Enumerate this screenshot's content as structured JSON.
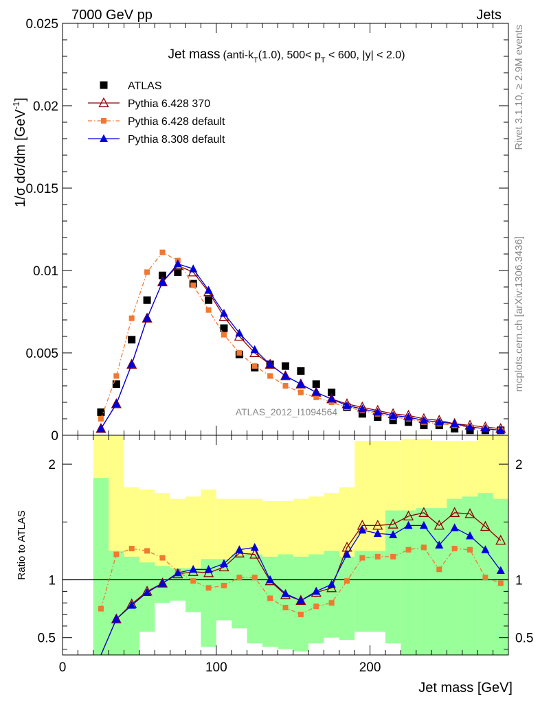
{
  "header": {
    "left": "7000 GeV pp",
    "right": "Jets",
    "side_top": "Rivet 3.1.10, ≥ 2.9M events",
    "side_bottom": "mcplots.cern.ch [arXiv:1306.3436]",
    "watermark": "ATLAS_2012_I1094564"
  },
  "chart_data": [
    {
      "type": "scatter",
      "title_main": "Jet mass",
      "title_sub": "(anti-k",
      "title_sub_T": "T",
      "title_sub2": "(1.0), 500< p",
      "title_sub3": " < 600, |y| < 2.0)",
      "ylabel": "1/σ dσ/dm [GeV",
      "ylabel_sup": "-1",
      "ylabel_end": "]",
      "xlim": [
        0,
        290
      ],
      "ylim": [
        0,
        0.025
      ],
      "yticks": [
        0,
        0.005,
        0.01,
        0.015,
        0.02,
        0.025
      ],
      "ytick_labels": [
        "0",
        "0.005",
        "0.01",
        "0.015",
        "0.02",
        "0.025"
      ],
      "x": [
        25,
        35,
        45,
        55,
        65,
        75,
        85,
        95,
        105,
        115,
        125,
        135,
        145,
        155,
        165,
        175,
        185,
        195,
        205,
        215,
        225,
        235,
        245,
        255,
        265,
        275,
        285
      ],
      "legend": [
        "ATLAS",
        "Pythia 6.428 370",
        "Pythia 6.428 default",
        "Pythia 8.308 default"
      ],
      "series": [
        {
          "name": "ATLAS",
          "color": "#000000",
          "marker": "square",
          "values": [
            0.0014,
            0.0031,
            0.0058,
            0.0082,
            0.0097,
            0.0099,
            0.0092,
            0.0082,
            0.0065,
            0.0049,
            0.0041,
            0.0043,
            0.0042,
            0.0039,
            0.0031,
            0.0026,
            0.0017,
            0.0013,
            0.0011,
            0.0009,
            0.0008,
            0.0006,
            0.0006,
            0.0004,
            0.0003,
            0.0003,
            0.0003
          ]
        },
        {
          "name": "Pythia 6.428 370",
          "color": "#8b0000",
          "marker": "triangle-open",
          "values": [
            0.0004,
            0.0019,
            0.0043,
            0.0071,
            0.0093,
            0.0103,
            0.0099,
            0.0087,
            0.0072,
            0.006,
            0.005,
            0.0043,
            0.0036,
            0.0031,
            0.0026,
            0.0022,
            0.0019,
            0.0017,
            0.0015,
            0.0013,
            0.0012,
            0.001,
            0.0009,
            0.0007,
            0.0006,
            0.0005,
            0.0004
          ]
        },
        {
          "name": "Pythia 6.428 default",
          "color": "#f07830",
          "marker": "square-small",
          "dash": true,
          "values": [
            0.001,
            0.0036,
            0.0071,
            0.0099,
            0.0111,
            0.0106,
            0.0091,
            0.0076,
            0.0061,
            0.005,
            0.0042,
            0.0036,
            0.003,
            0.0026,
            0.0023,
            0.002,
            0.0017,
            0.0015,
            0.0013,
            0.0011,
            0.001,
            0.0008,
            0.0007,
            0.0006,
            0.0005,
            0.0004,
            0.0003
          ]
        },
        {
          "name": "Pythia 8.308 default",
          "color": "#0000dd",
          "marker": "triangle",
          "values": [
            0.0004,
            0.0019,
            0.0043,
            0.0071,
            0.0093,
            0.0104,
            0.0101,
            0.0088,
            0.0074,
            0.0062,
            0.0052,
            0.0043,
            0.0036,
            0.0031,
            0.0026,
            0.0022,
            0.0018,
            0.0016,
            0.0014,
            0.0012,
            0.0011,
            0.0009,
            0.0008,
            0.0007,
            0.0005,
            0.0004,
            0.0003
          ]
        }
      ]
    },
    {
      "type": "line",
      "ylabel": "Ratio to ATLAS",
      "xlabel": "Jet mass [GeV]",
      "xlim": [
        0,
        290
      ],
      "ylim": [
        0.35,
        2.25
      ],
      "xticks": [
        0,
        100,
        200
      ],
      "xtick_labels": [
        "0",
        "100",
        "200"
      ],
      "yticks": [
        0.5,
        1,
        2
      ],
      "ytick_labels": [
        "0.5",
        "1",
        "2"
      ],
      "bin_edges": [
        20,
        30,
        40,
        50,
        60,
        70,
        80,
        90,
        100,
        110,
        120,
        130,
        140,
        150,
        160,
        170,
        180,
        190,
        200,
        210,
        220,
        230,
        240,
        250,
        260,
        270,
        280,
        290
      ],
      "band_green": {
        "color": "#99ff99",
        "lo": [
          0.35,
          0.35,
          0.35,
          0.35,
          0.35,
          0.35,
          0.35,
          0.35,
          0.35,
          0.35,
          0.35,
          0.35,
          0.35,
          0.35,
          0.35,
          0.35,
          0.35,
          0.35,
          0.35,
          0.35,
          0.35,
          0.35,
          0.35,
          0.35,
          0.35,
          0.35,
          0.35
        ],
        "hi": [
          1.88,
          1.25,
          1.2,
          1.15,
          1.12,
          1.1,
          1.1,
          1.18,
          1.18,
          1.22,
          1.22,
          1.2,
          1.22,
          1.2,
          1.22,
          1.25,
          1.2,
          1.25,
          1.25,
          1.6,
          1.6,
          1.62,
          1.62,
          1.7,
          1.72,
          1.75,
          1.7
        ]
      },
      "band_yellow": {
        "color": "#ffff88",
        "lo": [
          0.35,
          0.35,
          0.35,
          0.35,
          0.35,
          0.35,
          0.35,
          0.35,
          0.35,
          0.35,
          0.35,
          0.35,
          0.35,
          0.35,
          0.35,
          0.35,
          0.35,
          0.35,
          0.35,
          0.35,
          0.35,
          0.35,
          0.35,
          0.35,
          0.35,
          0.35,
          0.35
        ],
        "hi": [
          2.25,
          2.25,
          1.8,
          1.78,
          1.75,
          1.7,
          1.72,
          1.78,
          1.7,
          1.7,
          1.7,
          1.68,
          1.68,
          1.7,
          1.72,
          1.75,
          1.8,
          2.2,
          2.2,
          2.2,
          2.22,
          2.22,
          2.2,
          2.2,
          2.2,
          2.25,
          2.25
        ]
      },
      "band_white": {
        "lo": [
          0.35,
          0.35,
          0.35,
          0.35,
          0.35,
          0.35,
          0.35,
          0.35,
          0.35,
          0.35,
          0.35,
          0.35,
          0.35,
          0.35,
          0.35,
          0.35,
          0.35,
          0.35,
          0.35,
          0.35,
          0.35,
          0.35,
          0.35,
          0.35,
          0.35,
          0.35,
          0.35
        ],
        "hi": [
          0.35,
          0.35,
          0.35,
          0.55,
          0.8,
          0.82,
          0.72,
          0.42,
          0.65,
          0.58,
          0.45,
          0.42,
          0.4,
          0.38,
          0.45,
          0.5,
          0.48,
          0.55,
          0.55,
          0.45,
          0.35,
          0.35,
          0.35,
          0.35,
          0.35,
          0.35,
          0.35
        ]
      },
      "series": [
        {
          "name": "Pythia 6.428 370",
          "color": "#8b0000",
          "marker": "triangle-open",
          "values": [
            0.3,
            0.66,
            0.79,
            0.9,
            0.97,
            1.05,
            1.07,
            1.06,
            1.11,
            1.23,
            1.22,
            0.99,
            0.87,
            0.82,
            0.89,
            0.93,
            1.28,
            1.47,
            1.47,
            1.48,
            1.55,
            1.58,
            1.47,
            1.58,
            1.57,
            1.46,
            1.34
          ]
        },
        {
          "name": "Pythia 6.428 default",
          "color": "#f07830",
          "marker": "square-small",
          "dash": true,
          "values": [
            0.75,
            1.22,
            1.27,
            1.25,
            1.19,
            1.07,
            0.99,
            0.93,
            0.95,
            1.02,
            1.02,
            0.84,
            0.76,
            0.7,
            0.77,
            0.8,
            0.99,
            1.19,
            1.2,
            1.2,
            1.26,
            1.28,
            1.09,
            1.27,
            1.26,
            1.02,
            0.97
          ]
        },
        {
          "name": "Pythia 8.308 default",
          "color": "#0000dd",
          "marker": "triangle",
          "values": [
            0.3,
            0.66,
            0.78,
            0.89,
            0.97,
            1.06,
            1.09,
            1.09,
            1.14,
            1.26,
            1.28,
            1.0,
            0.88,
            0.82,
            0.9,
            0.96,
            1.22,
            1.43,
            1.4,
            1.39,
            1.47,
            1.47,
            1.3,
            1.45,
            1.38,
            1.26,
            1.08
          ]
        }
      ]
    }
  ]
}
